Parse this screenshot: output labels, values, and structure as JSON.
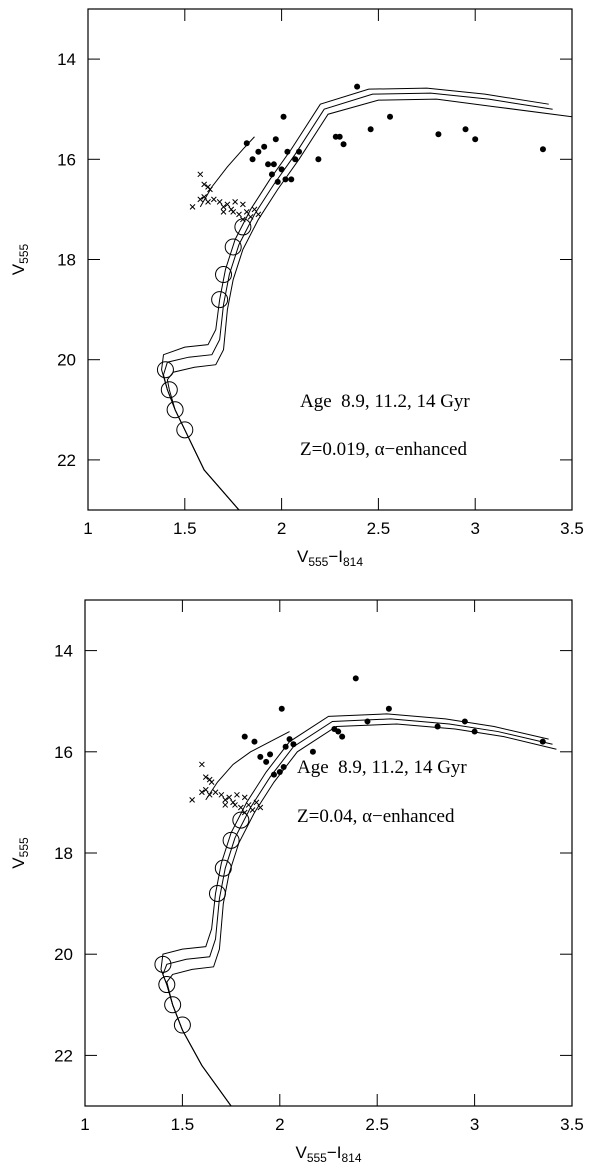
{
  "chart_data": [
    {
      "type": "scatter",
      "xlabel": [
        "V",
        "555",
        "−I",
        "814"
      ],
      "ylabel": [
        "V",
        "555"
      ],
      "annotations": [
        "Age  8.9, 11.2, 14 Gyr",
        "Z=0.019, α−enhanced"
      ],
      "xlim": [
        1,
        3.5
      ],
      "ylim": [
        13,
        23
      ],
      "yinvert": true,
      "xticks": [
        1,
        1.5,
        2,
        2.5,
        3,
        3.5
      ],
      "yticks": [
        14,
        16,
        18,
        20,
        22
      ],
      "series": [
        {
          "marker": "line",
          "color": "#000000",
          "x": [
            1.78,
            1.6,
            1.5,
            1.45,
            1.41,
            1.38,
            1.39,
            1.5,
            1.62,
            1.66,
            1.68,
            1.71,
            1.76,
            1.84,
            1.94,
            2.05,
            2.2,
            2.45,
            2.75,
            3.05,
            3.38
          ],
          "values": [
            23,
            22.2,
            21.4,
            21.0,
            20.6,
            20.2,
            19.9,
            19.75,
            19.7,
            19.4,
            18.8,
            18.2,
            17.6,
            17.0,
            16.4,
            15.8,
            14.9,
            14.6,
            14.58,
            14.7,
            14.9
          ]
        },
        {
          "marker": "line",
          "color": "#000000",
          "x": [
            1.78,
            1.6,
            1.5,
            1.45,
            1.41,
            1.39,
            1.41,
            1.52,
            1.64,
            1.68,
            1.7,
            1.73,
            1.78,
            1.86,
            1.96,
            2.07,
            2.22,
            2.47,
            2.77,
            3.07,
            3.4
          ],
          "values": [
            23,
            22.2,
            21.4,
            21.0,
            20.6,
            20.3,
            20.05,
            19.95,
            19.9,
            19.6,
            18.9,
            18.3,
            17.7,
            17.1,
            16.5,
            15.9,
            15.0,
            14.7,
            14.68,
            14.8,
            15.0
          ]
        },
        {
          "marker": "line",
          "color": "#000000",
          "x": [
            1.78,
            1.6,
            1.5,
            1.45,
            1.42,
            1.41,
            1.44,
            1.55,
            1.66,
            1.7,
            1.72,
            1.75,
            1.8,
            1.88,
            1.98,
            2.09,
            2.24,
            2.5,
            2.8,
            3.1,
            3.5
          ],
          "values": [
            23,
            22.2,
            21.4,
            21.0,
            20.6,
            20.4,
            20.25,
            20.15,
            20.1,
            19.8,
            19.0,
            18.4,
            17.8,
            17.2,
            16.6,
            16.0,
            15.1,
            14.82,
            14.8,
            14.95,
            15.15
          ]
        },
        {
          "marker": "line",
          "color": "#000000",
          "x": [
            1.58,
            1.64,
            1.72,
            1.8,
            1.86
          ],
          "values": [
            16.95,
            16.55,
            16.15,
            15.8,
            15.55
          ]
        },
        {
          "marker": "dot",
          "color": "#000000",
          "x": [
            1.82,
            1.85,
            1.88,
            1.91,
            1.93,
            1.95,
            1.96,
            1.97,
            1.98,
            2.0,
            2.01,
            2.02,
            2.03,
            2.05,
            2.07,
            2.09,
            2.19,
            2.28,
            2.3,
            2.32,
            2.39,
            2.46,
            2.56,
            2.81,
            2.95,
            3.0,
            3.35
          ],
          "values": [
            15.68,
            16.0,
            15.85,
            15.75,
            16.1,
            16.3,
            16.1,
            15.6,
            16.45,
            16.2,
            15.15,
            16.4,
            15.85,
            16.4,
            16.0,
            15.85,
            16.0,
            15.55,
            15.55,
            15.7,
            14.55,
            15.4,
            15.15,
            15.5,
            15.4,
            15.6,
            15.8
          ]
        },
        {
          "marker": "x",
          "color": "#000000",
          "x": [
            1.58,
            1.6,
            1.62,
            1.63,
            1.54,
            1.58,
            1.6,
            1.62,
            1.65,
            1.68,
            1.7,
            1.72,
            1.74,
            1.76,
            1.78,
            1.8,
            1.82,
            1.84,
            1.86,
            1.88,
            1.8,
            1.75,
            1.7
          ],
          "values": [
            16.3,
            16.5,
            16.55,
            16.6,
            16.95,
            16.8,
            16.75,
            16.85,
            16.8,
            16.85,
            16.95,
            16.9,
            17.0,
            16.85,
            17.1,
            17.2,
            17.05,
            17.15,
            17.0,
            17.1,
            16.9,
            17.05,
            17.05
          ]
        },
        {
          "marker": "circle",
          "color": "#000000",
          "x": [
            1.4,
            1.42,
            1.45,
            1.5,
            1.68,
            1.7,
            1.75,
            1.8
          ],
          "values": [
            20.2,
            20.6,
            21.0,
            21.4,
            18.8,
            18.3,
            17.75,
            17.35
          ]
        }
      ]
    },
    {
      "type": "scatter",
      "xlabel": [
        "V",
        "555",
        "−I",
        "814"
      ],
      "ylabel": [
        "V",
        "555"
      ],
      "annotations": [
        "Age  8.9, 11.2, 14 Gyr",
        "Z=0.04, α−enhanced"
      ],
      "xlim": [
        1,
        3.5
      ],
      "ylim": [
        13,
        23
      ],
      "yinvert": true,
      "xticks": [
        1,
        1.5,
        2,
        2.5,
        3,
        3.5
      ],
      "yticks": [
        14,
        16,
        18,
        20,
        22
      ],
      "series": [
        {
          "marker": "line",
          "color": "#000000",
          "x": [
            1.75,
            1.6,
            1.5,
            1.45,
            1.42,
            1.39,
            1.4,
            1.5,
            1.62,
            1.65,
            1.67,
            1.7,
            1.75,
            1.83,
            1.93,
            2.05,
            2.25,
            2.55,
            2.85,
            3.1,
            3.38
          ],
          "values": [
            23,
            22.2,
            21.5,
            21.0,
            20.6,
            20.3,
            20.0,
            19.9,
            19.85,
            19.5,
            18.8,
            18.2,
            17.6,
            17.0,
            16.4,
            15.8,
            15.3,
            15.25,
            15.35,
            15.5,
            15.75
          ]
        },
        {
          "marker": "line",
          "color": "#000000",
          "x": [
            1.75,
            1.6,
            1.5,
            1.45,
            1.42,
            1.4,
            1.42,
            1.52,
            1.64,
            1.67,
            1.69,
            1.72,
            1.77,
            1.85,
            1.95,
            2.07,
            2.27,
            2.57,
            2.87,
            3.12,
            3.4
          ],
          "values": [
            23,
            22.2,
            21.5,
            21.0,
            20.6,
            20.4,
            20.2,
            20.1,
            20.05,
            19.7,
            18.9,
            18.3,
            17.7,
            17.1,
            16.5,
            15.9,
            15.4,
            15.35,
            15.45,
            15.6,
            15.85
          ]
        },
        {
          "marker": "line",
          "color": "#000000",
          "x": [
            1.75,
            1.6,
            1.5,
            1.45,
            1.43,
            1.42,
            1.45,
            1.55,
            1.66,
            1.69,
            1.71,
            1.74,
            1.79,
            1.87,
            1.97,
            2.09,
            2.29,
            2.6,
            2.9,
            3.15,
            3.42
          ],
          "values": [
            23,
            22.2,
            21.5,
            21.0,
            20.7,
            20.55,
            20.4,
            20.3,
            20.25,
            19.9,
            19.0,
            18.4,
            17.8,
            17.2,
            16.6,
            16.0,
            15.5,
            15.45,
            15.55,
            15.7,
            15.95
          ]
        },
        {
          "marker": "line",
          "color": "#000000",
          "x": [
            1.62,
            1.68,
            1.76,
            1.85,
            1.95,
            2.05
          ],
          "values": [
            16.95,
            16.6,
            16.25,
            16.0,
            15.8,
            15.6
          ]
        },
        {
          "marker": "dot",
          "color": "#000000",
          "x": [
            1.82,
            1.87,
            1.9,
            1.93,
            1.95,
            1.97,
            2.0,
            2.01,
            2.02,
            2.03,
            2.05,
            2.07,
            2.17,
            2.28,
            2.3,
            2.32,
            2.39,
            2.45,
            2.56,
            2.81,
            2.95,
            3.0,
            3.35
          ],
          "values": [
            15.7,
            15.8,
            16.1,
            16.2,
            16.05,
            16.45,
            16.4,
            15.15,
            16.3,
            15.9,
            15.75,
            15.85,
            16.0,
            15.55,
            15.6,
            15.7,
            14.55,
            15.4,
            15.15,
            15.5,
            15.4,
            15.6,
            15.8
          ]
        },
        {
          "marker": "x",
          "color": "#000000",
          "x": [
            1.6,
            1.62,
            1.64,
            1.65,
            1.55,
            1.6,
            1.62,
            1.64,
            1.67,
            1.7,
            1.72,
            1.74,
            1.76,
            1.78,
            1.8,
            1.82,
            1.84,
            1.86,
            1.88,
            1.9,
            1.82,
            1.77,
            1.72
          ],
          "values": [
            16.25,
            16.5,
            16.55,
            16.6,
            16.95,
            16.8,
            16.75,
            16.85,
            16.8,
            16.85,
            16.95,
            16.9,
            17.0,
            16.85,
            17.1,
            17.2,
            17.05,
            17.15,
            17.0,
            17.1,
            16.9,
            17.05,
            17.05
          ]
        },
        {
          "marker": "circle",
          "color": "#000000",
          "x": [
            1.4,
            1.42,
            1.45,
            1.5,
            1.68,
            1.71,
            1.75,
            1.8
          ],
          "values": [
            20.2,
            20.6,
            21.0,
            21.4,
            18.8,
            18.3,
            17.75,
            17.35
          ]
        }
      ]
    }
  ]
}
